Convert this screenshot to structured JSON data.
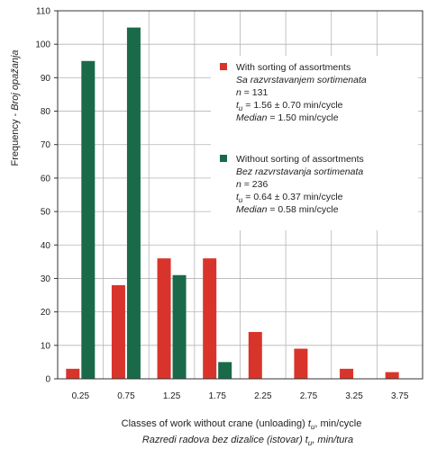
{
  "chart_data": {
    "type": "bar",
    "categories": [
      "0.25",
      "0.75",
      "1.25",
      "1.75",
      "2.25",
      "2.75",
      "3.25",
      "3.75"
    ],
    "series": [
      {
        "name": "With sorting of assortments",
        "color": "#d9342b",
        "values": [
          3,
          28,
          36,
          36,
          14,
          9,
          3,
          2
        ]
      },
      {
        "name": "Without sorting of assortments",
        "color": "#1a6a4a",
        "values": [
          95,
          105,
          31,
          5,
          0,
          0,
          0,
          0
        ]
      }
    ],
    "ylim": [
      0,
      110
    ],
    "yticks": [
      0,
      10,
      20,
      30,
      40,
      50,
      60,
      70,
      80,
      90,
      100,
      110
    ],
    "ylabel": {
      "en": "Frequency",
      "sep": " - ",
      "local": "Broj opažanja"
    },
    "xlabel": {
      "line1_pre": "Classes of work without crane (unloading) ",
      "line1_var": "t",
      "line1_sub": "u",
      "line1_post": ", min/cycle",
      "line2_pre": "Razredi radova bez dizalice (istovar) ",
      "line2_var": "t",
      "line2_sub": "u",
      "line2_post": ", min/tura"
    },
    "grid": true,
    "legend": [
      {
        "color": "#d9342b",
        "title": "With sorting of assortments",
        "subtitle": "Sa razvrstavanjem sortimenata",
        "n_label": "n",
        "n_value": " = 131",
        "t_var": "t",
        "t_sub": "u",
        "t_value": " = 1.56 ± 0.70 min/cycle",
        "median_label": "Median",
        "median_value": " = 1.50 min/cycle"
      },
      {
        "color": "#1a6a4a",
        "title": "Without sorting of assortments",
        "subtitle": "Bez razvrstavanja sortimenata",
        "n_label": "n",
        "n_value": " = 236",
        "t_var": "t",
        "t_sub": "u",
        "t_value": " = 0.64 ± 0.37 min/cycle",
        "median_label": "Median",
        "median_value": " = 0.58 min/cycle"
      }
    ]
  }
}
